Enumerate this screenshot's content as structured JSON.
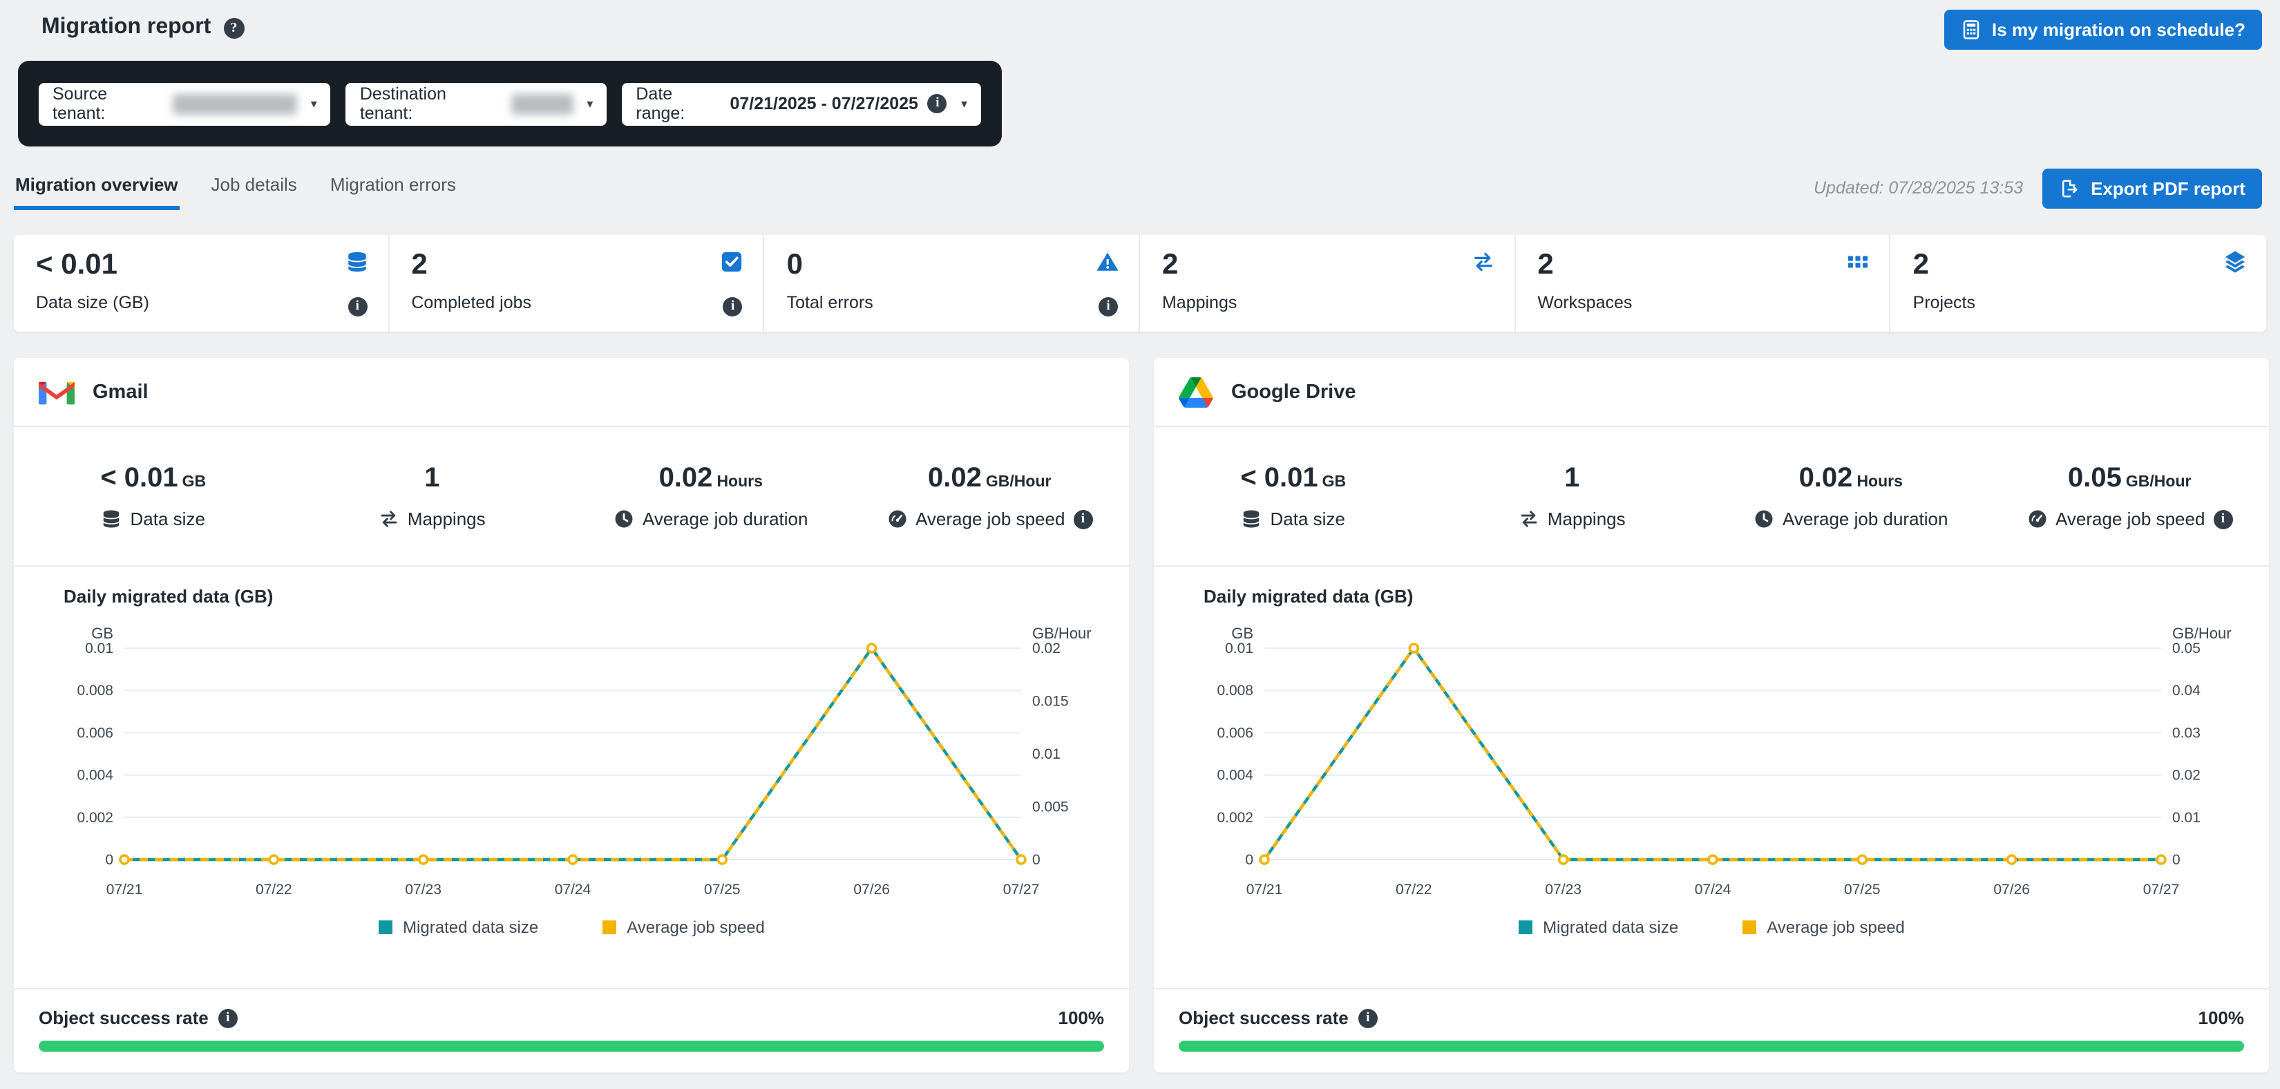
{
  "page_title": "Migration report",
  "schedule_button": "Is my migration on schedule?",
  "filters": {
    "source_label": "Source tenant:",
    "destination_label": "Destination tenant:",
    "date_label": "Date range:",
    "date_value": "07/21/2025 - 07/27/2025"
  },
  "tabs": {
    "overview": "Migration overview",
    "job_details": "Job details",
    "errors": "Migration errors"
  },
  "updated_text": "Updated: 07/28/2025 13:53",
  "export_button": "Export PDF report",
  "colors": {
    "accent_blue": "#1677d2",
    "dark_bar": "#171e26",
    "success_green": "#2fcb73",
    "series_teal": "#0e98a2",
    "series_yellow": "#f2b400"
  },
  "summary_stats": [
    {
      "value": "< 0.01",
      "label": "Data size (GB)",
      "icon": "database-icon",
      "info": true
    },
    {
      "value": "2",
      "label": "Completed jobs",
      "icon": "checkbox-icon",
      "info": true
    },
    {
      "value": "0",
      "label": "Total errors",
      "icon": "warning-icon",
      "info": true
    },
    {
      "value": "2",
      "label": "Mappings",
      "icon": "mappings-icon",
      "info": false
    },
    {
      "value": "2",
      "label": "Workspaces",
      "icon": "grid-icon",
      "info": false
    },
    {
      "value": "2",
      "label": "Projects",
      "icon": "layers-icon",
      "info": false
    }
  ],
  "cards": [
    {
      "service": "Gmail",
      "logo": "gmail-logo",
      "stats": [
        {
          "value": "< 0.01",
          "unit": "GB",
          "label": "Data size",
          "icon": "database-icon"
        },
        {
          "value": "1",
          "unit": "",
          "label": "Mappings",
          "icon": "mappings-icon"
        },
        {
          "value": "0.02",
          "unit": "Hours",
          "label": "Average job duration",
          "icon": "clock-icon"
        },
        {
          "value": "0.02",
          "unit": "GB/Hour",
          "label": "Average job speed",
          "icon": "speedometer-icon",
          "info": true
        }
      ],
      "success_label": "Object success rate",
      "success_value": "100%",
      "success_percent": 100
    },
    {
      "service": "Google Drive",
      "logo": "google-drive-logo",
      "stats": [
        {
          "value": "< 0.01",
          "unit": "GB",
          "label": "Data size",
          "icon": "database-icon"
        },
        {
          "value": "1",
          "unit": "",
          "label": "Mappings",
          "icon": "mappings-icon"
        },
        {
          "value": "0.02",
          "unit": "Hours",
          "label": "Average job duration",
          "icon": "clock-icon"
        },
        {
          "value": "0.05",
          "unit": "GB/Hour",
          "label": "Average job speed",
          "icon": "speedometer-icon",
          "info": true
        }
      ],
      "success_label": "Object success rate",
      "success_value": "100%",
      "success_percent": 100
    }
  ],
  "chart_data": [
    {
      "type": "line",
      "title": "Daily migrated data (GB)",
      "x": [
        "07/21",
        "07/22",
        "07/23",
        "07/24",
        "07/25",
        "07/26",
        "07/27"
      ],
      "left_axis": {
        "label": "GB",
        "max": 0.01,
        "ticks": [
          "0",
          "0.002",
          "0.004",
          "0.006",
          "0.008",
          "0.01"
        ]
      },
      "right_axis": {
        "label": "GB/Hour",
        "max": 0.02,
        "ticks": [
          "0",
          "0.005",
          "0.01",
          "0.015",
          "0.02"
        ]
      },
      "grid": true,
      "legend_position": "bottom",
      "series": [
        {
          "name": "Migrated data size",
          "axis": "left",
          "color": "#0e98a2",
          "style": "solid",
          "values": [
            0,
            0,
            0,
            0,
            0,
            0.01,
            0
          ]
        },
        {
          "name": "Average job speed",
          "axis": "right",
          "color": "#f2b400",
          "style": "dashed",
          "values": [
            0,
            0,
            0,
            0,
            0,
            0.02,
            0
          ]
        }
      ]
    },
    {
      "type": "line",
      "title": "Daily migrated data (GB)",
      "x": [
        "07/21",
        "07/22",
        "07/23",
        "07/24",
        "07/25",
        "07/26",
        "07/27"
      ],
      "left_axis": {
        "label": "GB",
        "max": 0.01,
        "ticks": [
          "0",
          "0.002",
          "0.004",
          "0.006",
          "0.008",
          "0.01"
        ]
      },
      "right_axis": {
        "label": "GB/Hour",
        "max": 0.05,
        "ticks": [
          "0",
          "0.01",
          "0.02",
          "0.03",
          "0.04",
          "0.05"
        ]
      },
      "grid": true,
      "legend_position": "bottom",
      "series": [
        {
          "name": "Migrated data size",
          "axis": "left",
          "color": "#0e98a2",
          "style": "solid",
          "values": [
            0,
            0.01,
            0,
            0,
            0,
            0,
            0
          ]
        },
        {
          "name": "Average job speed",
          "axis": "right",
          "color": "#f2b400",
          "style": "dashed",
          "values": [
            0,
            0.05,
            0,
            0,
            0,
            0,
            0
          ]
        }
      ]
    }
  ]
}
